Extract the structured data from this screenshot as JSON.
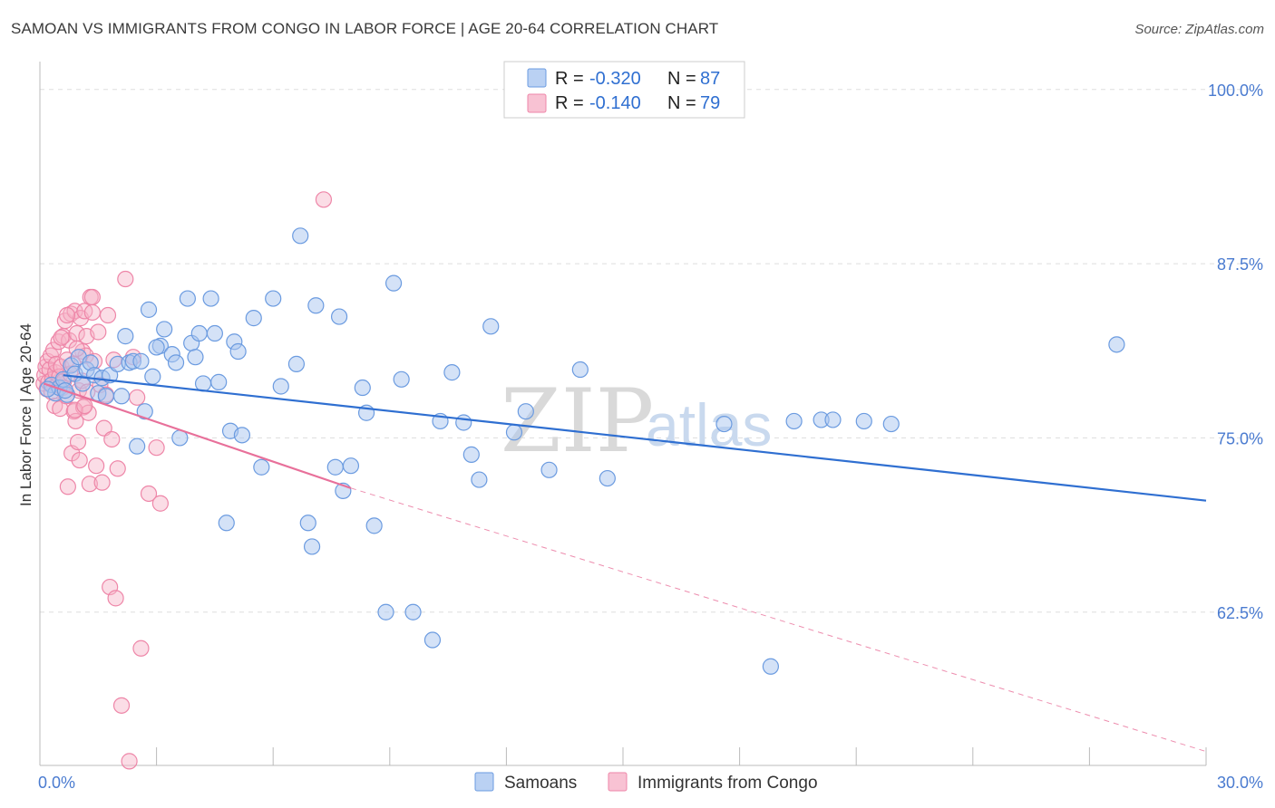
{
  "title": "SAMOAN VS IMMIGRANTS FROM CONGO IN LABOR FORCE | AGE 20-64 CORRELATION CHART",
  "source": "Source: ZipAtlas.com",
  "watermark": {
    "zip": "ZIP",
    "atlas": "atlas"
  },
  "legend": {
    "rows": [
      {
        "r_label": "R =",
        "r_value": "-0.320",
        "n_label": "N =",
        "n_value": "87"
      },
      {
        "r_label": "R =",
        "r_value": "-0.140",
        "n_label": "N =",
        "n_value": "79"
      }
    ]
  },
  "bottom_legend": [
    "Samoans",
    "Immigrants from Congo"
  ],
  "colors": {
    "samoans_fill": "#a9c6f0",
    "samoans_stroke": "#6b9be0",
    "samoans_line": "#2f6fd1",
    "congo_fill": "#f6b3c8",
    "congo_stroke": "#ee86a8",
    "congo_line": "#e8709a",
    "grid": "#dddddd",
    "axis_text": "#4a7bd0"
  },
  "chart_data": {
    "type": "scatter",
    "title": "SAMOAN VS IMMIGRANTS FROM CONGO IN LABOR FORCE | AGE 20-64 CORRELATION CHART",
    "xlabel": "",
    "ylabel": "In Labor Force | Age 20-64",
    "xlim": [
      0,
      30
    ],
    "ylim": [
      51.5,
      102
    ],
    "x_tick_labels": [
      "0.0%",
      "30.0%"
    ],
    "x_tick_values": [
      0,
      30
    ],
    "y_tick_labels": [
      "62.5%",
      "75.0%",
      "87.5%",
      "100.0%"
    ],
    "y_tick_values": [
      62.5,
      75.0,
      87.5,
      100.0
    ],
    "grid": "horizontal-dashed",
    "legend_placement": "top-center",
    "series": [
      {
        "name": "Samoans",
        "points": [
          [
            0.3,
            78.8
          ],
          [
            0.4,
            78.2
          ],
          [
            0.5,
            78.6
          ],
          [
            0.6,
            79.2
          ],
          [
            0.7,
            78.1
          ],
          [
            0.8,
            80.2
          ],
          [
            0.9,
            79.6
          ],
          [
            1.0,
            80.8
          ],
          [
            1.1,
            78.9
          ],
          [
            1.2,
            79.9
          ],
          [
            1.3,
            80.4
          ],
          [
            1.4,
            79.5
          ],
          [
            1.5,
            78.2
          ],
          [
            1.6,
            79.3
          ],
          [
            1.8,
            79.5
          ],
          [
            2.0,
            80.3
          ],
          [
            2.1,
            78.0
          ],
          [
            2.2,
            82.3
          ],
          [
            2.3,
            80.4
          ],
          [
            2.4,
            80.5
          ],
          [
            2.5,
            74.4
          ],
          [
            2.6,
            80.5
          ],
          [
            2.7,
            76.9
          ],
          [
            2.8,
            84.2
          ],
          [
            2.9,
            79.4
          ],
          [
            3.1,
            81.6
          ],
          [
            3.2,
            82.8
          ],
          [
            3.4,
            81.0
          ],
          [
            3.5,
            80.4
          ],
          [
            3.6,
            75.0
          ],
          [
            3.8,
            85.0
          ],
          [
            3.9,
            81.8
          ],
          [
            4.0,
            80.8
          ],
          [
            4.1,
            82.5
          ],
          [
            4.2,
            78.9
          ],
          [
            4.4,
            85.0
          ],
          [
            4.5,
            82.5
          ],
          [
            4.6,
            79.0
          ],
          [
            4.8,
            68.9
          ],
          [
            4.9,
            75.5
          ],
          [
            5.0,
            81.9
          ],
          [
            5.1,
            81.2
          ],
          [
            5.2,
            75.2
          ],
          [
            5.5,
            83.6
          ],
          [
            5.7,
            72.9
          ],
          [
            6.0,
            85.0
          ],
          [
            6.2,
            78.7
          ],
          [
            6.6,
            80.3
          ],
          [
            6.7,
            89.5
          ],
          [
            6.9,
            68.9
          ],
          [
            7.0,
            67.2
          ],
          [
            7.1,
            84.5
          ],
          [
            7.6,
            72.9
          ],
          [
            7.7,
            83.7
          ],
          [
            7.8,
            71.2
          ],
          [
            8.0,
            73.0
          ],
          [
            8.3,
            78.6
          ],
          [
            8.4,
            76.8
          ],
          [
            8.6,
            68.7
          ],
          [
            8.9,
            62.5
          ],
          [
            9.1,
            86.1
          ],
          [
            9.3,
            79.2
          ],
          [
            9.6,
            62.5
          ],
          [
            10.1,
            60.5
          ],
          [
            10.3,
            76.2
          ],
          [
            10.6,
            79.7
          ],
          [
            10.9,
            76.1
          ],
          [
            11.1,
            73.8
          ],
          [
            11.3,
            72.0
          ],
          [
            11.6,
            83.0
          ],
          [
            12.2,
            75.4
          ],
          [
            12.5,
            76.9
          ],
          [
            13.1,
            72.7
          ],
          [
            13.9,
            79.9
          ],
          [
            14.6,
            72.1
          ],
          [
            17.6,
            76.0
          ],
          [
            18.8,
            58.6
          ],
          [
            19.4,
            76.2
          ],
          [
            20.1,
            76.3
          ],
          [
            20.4,
            76.3
          ],
          [
            21.2,
            76.2
          ],
          [
            21.9,
            76.0
          ],
          [
            27.7,
            81.7
          ],
          [
            0.2,
            78.5
          ],
          [
            0.65,
            78.4
          ],
          [
            1.7,
            78.0
          ],
          [
            3.0,
            81.5
          ]
        ],
        "trend": {
          "x": [
            0.6,
            30.0
          ],
          "y": [
            79.5,
            70.5
          ]
        }
      },
      {
        "name": "Immigrants from Congo",
        "points": [
          [
            0.1,
            78.9
          ],
          [
            0.12,
            79.5
          ],
          [
            0.15,
            80.1
          ],
          [
            0.18,
            78.5
          ],
          [
            0.2,
            80.5
          ],
          [
            0.22,
            79.0
          ],
          [
            0.25,
            79.9
          ],
          [
            0.28,
            80.9
          ],
          [
            0.3,
            78.3
          ],
          [
            0.32,
            79.2
          ],
          [
            0.35,
            81.3
          ],
          [
            0.38,
            77.3
          ],
          [
            0.4,
            79.7
          ],
          [
            0.42,
            80.3
          ],
          [
            0.45,
            78.8
          ],
          [
            0.48,
            81.9
          ],
          [
            0.5,
            79.4
          ],
          [
            0.52,
            77.1
          ],
          [
            0.55,
            80.1
          ],
          [
            0.58,
            78.6
          ],
          [
            0.6,
            82.3
          ],
          [
            0.62,
            79.1
          ],
          [
            0.65,
            83.4
          ],
          [
            0.68,
            78.0
          ],
          [
            0.7,
            80.6
          ],
          [
            0.72,
            71.5
          ],
          [
            0.75,
            82.0
          ],
          [
            0.78,
            79.6
          ],
          [
            0.8,
            83.9
          ],
          [
            0.82,
            73.9
          ],
          [
            0.85,
            80.3
          ],
          [
            0.88,
            76.9
          ],
          [
            0.9,
            84.1
          ],
          [
            0.92,
            76.2
          ],
          [
            0.95,
            82.5
          ],
          [
            0.98,
            74.7
          ],
          [
            1.0,
            78.4
          ],
          [
            1.02,
            73.4
          ],
          [
            1.05,
            83.6
          ],
          [
            1.08,
            79.1
          ],
          [
            1.1,
            81.2
          ],
          [
            1.12,
            77.2
          ],
          [
            1.15,
            84.1
          ],
          [
            1.18,
            80.9
          ],
          [
            1.2,
            82.3
          ],
          [
            1.22,
            78.3
          ],
          [
            1.25,
            76.8
          ],
          [
            1.28,
            71.7
          ],
          [
            1.3,
            85.1
          ],
          [
            1.35,
            84.0
          ],
          [
            1.4,
            80.5
          ],
          [
            1.45,
            73.0
          ],
          [
            1.5,
            82.6
          ],
          [
            1.55,
            78.8
          ],
          [
            1.6,
            71.8
          ],
          [
            1.65,
            75.7
          ],
          [
            1.7,
            78.1
          ],
          [
            1.75,
            83.8
          ],
          [
            1.8,
            64.3
          ],
          [
            1.85,
            74.9
          ],
          [
            1.9,
            80.6
          ],
          [
            1.95,
            63.5
          ],
          [
            2.0,
            72.8
          ],
          [
            2.1,
            55.8
          ],
          [
            2.2,
            86.4
          ],
          [
            2.3,
            51.8
          ],
          [
            2.4,
            80.8
          ],
          [
            2.5,
            77.9
          ],
          [
            2.6,
            59.9
          ],
          [
            2.8,
            71.0
          ],
          [
            3.0,
            74.3
          ],
          [
            3.1,
            70.3
          ],
          [
            0.9,
            77.0
          ],
          [
            0.7,
            83.8
          ],
          [
            0.55,
            82.2
          ],
          [
            1.15,
            77.3
          ],
          [
            0.95,
            81.4
          ],
          [
            1.35,
            85.1
          ],
          [
            7.3,
            92.1
          ]
        ],
        "trend": {
          "x": [
            0.1,
            8.0
          ],
          "y": [
            78.9,
            71.4
          ]
        },
        "trend_extension": {
          "x": [
            8.0,
            30.0
          ],
          "y": [
            71.4,
            52.5
          ]
        }
      }
    ]
  }
}
